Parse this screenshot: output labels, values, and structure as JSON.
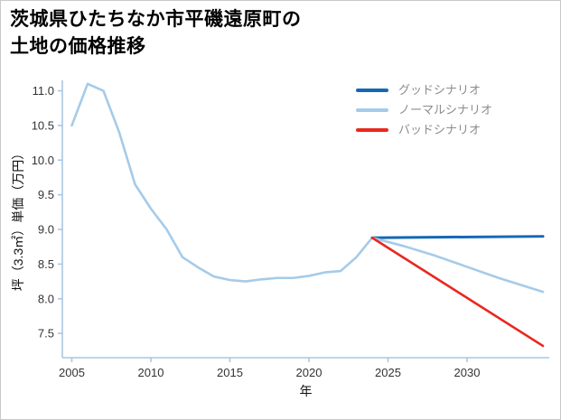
{
  "page": {
    "title_line1": "茨城県ひたちなか市平磯遠原町の",
    "title_line2": "土地の価格推移"
  },
  "chart_data": {
    "type": "line",
    "title": "茨城県ひたちなか市平磯遠原町の土地の価格推移",
    "xlabel": "年",
    "ylabel": "坪（3.3㎡）単価（万円）",
    "xlim": [
      2004.4,
      2035.2
    ],
    "ylim": [
      7.15,
      11.15
    ],
    "xticks": [
      2005,
      2010,
      2015,
      2020,
      2025,
      2030
    ],
    "yticks": [
      7.5,
      8.0,
      8.5,
      9.0,
      9.5,
      10.0,
      10.5,
      11.0
    ],
    "grid": false,
    "legend_position": "top-right",
    "axis_color": "#a9c6e3",
    "tick_label_color": "#333333",
    "legend_text_color": "#8c8c8c",
    "legend": [
      {
        "id": "good",
        "label": "グッドシナリオ",
        "color": "#1668b5"
      },
      {
        "id": "normal",
        "label": "ノーマルシナリオ",
        "color": "#a5cbe9"
      },
      {
        "id": "bad",
        "label": "バッドシナリオ",
        "color": "#e8291f"
      }
    ],
    "series": [
      {
        "id": "historical",
        "color": "#a5cbe9",
        "width": 2.6,
        "x": [
          2005,
          2006,
          2007,
          2008,
          2009,
          2010,
          2011,
          2012,
          2013,
          2014,
          2015,
          2016,
          2017,
          2018,
          2019,
          2020,
          2021,
          2022,
          2023,
          2024
        ],
        "values": [
          10.5,
          11.1,
          11.0,
          10.4,
          9.65,
          9.3,
          9.0,
          8.6,
          8.45,
          8.32,
          8.27,
          8.25,
          8.28,
          8.3,
          8.3,
          8.33,
          8.38,
          8.4,
          8.6,
          8.88
        ]
      },
      {
        "id": "good",
        "color": "#1668b5",
        "width": 3.0,
        "x": [
          2024,
          2034.8
        ],
        "values": [
          8.88,
          8.9
        ]
      },
      {
        "id": "normal",
        "color": "#a5cbe9",
        "width": 2.6,
        "x": [
          2024,
          2026,
          2028,
          2030,
          2032,
          2034.8
        ],
        "values": [
          8.88,
          8.76,
          8.62,
          8.46,
          8.3,
          8.1
        ]
      },
      {
        "id": "bad",
        "color": "#e8291f",
        "width": 2.6,
        "x": [
          2024,
          2034.8
        ],
        "values": [
          8.88,
          7.32
        ]
      }
    ]
  }
}
